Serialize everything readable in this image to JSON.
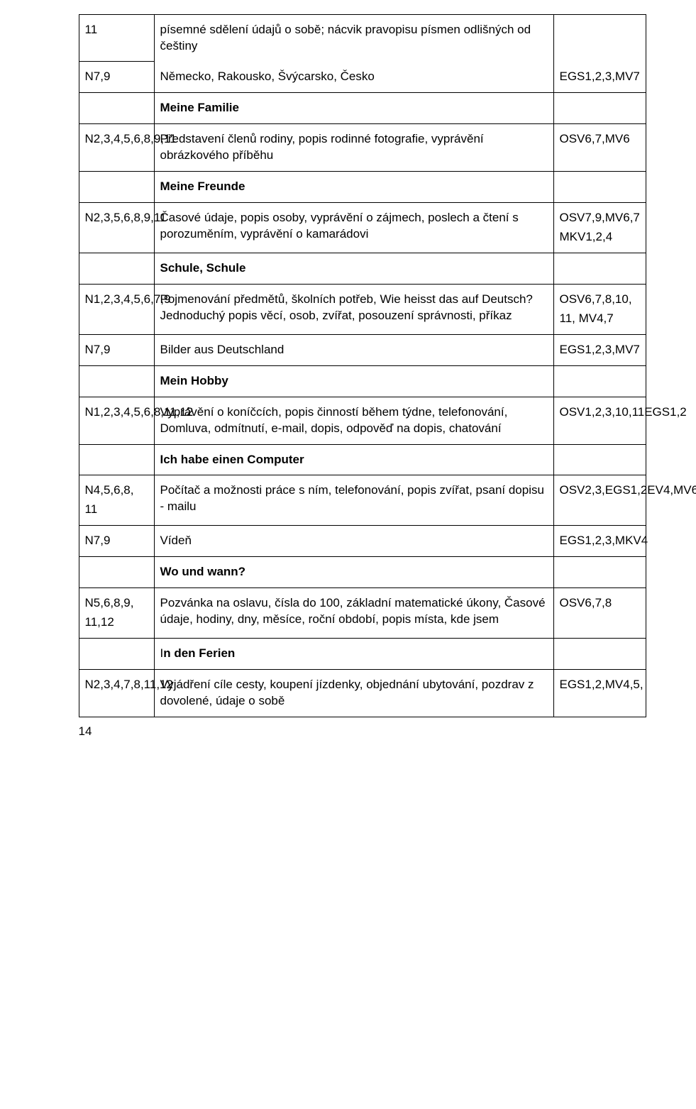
{
  "rows": [
    {
      "c1": "11",
      "c2": "písemné sdělení údajů o sobě; nácvik pravopisu písmen odlišných od češtiny",
      "c3": ""
    },
    {
      "c1": "N7,9",
      "c2": "Německo, Rakousko, Švýcarsko, Česko",
      "c3": "EGS1,2,3,MV7"
    },
    {
      "c1": "",
      "c2_bold": "Meine Familie",
      "c3": ""
    },
    {
      "c1": "N2,3,4,5,6,8,9,11",
      "c2": "Představení členů rodiny, popis rodinné fotografie, vyprávění obrázkového příběhu",
      "c3": "OSV6,7,MV6"
    },
    {
      "c1": "",
      "c2_bold": "Meine Freunde",
      "c3": ""
    },
    {
      "c1": "N2,3,5,6,8,9,11",
      "c2": "Časové údaje, popis osoby, vyprávění o zájmech, poslech a čtení s porozuměním, vyprávění o kamarádovi",
      "c3_multi": [
        "OSV7,9,MV6,7",
        "MKV1,2,4"
      ]
    },
    {
      "c1": "",
      "c2_bold": "Schule, Schule",
      "c3": ""
    },
    {
      "c1": "N1,2,3,4,5,6,7,9",
      "c2": "Pojmenování předmětů, školních potřeb, Wie heisst das auf Deutsch? Jednoduchý popis věcí, osob, zvířat, posouzení správnosti, příkaz",
      "c3_multi": [
        "OSV6,7,8,10,",
        "11, MV4,7"
      ]
    },
    {
      "c1": "N7,9",
      "c2": "Bilder aus Deutschland",
      "c3": "EGS1,2,3,MV7"
    },
    {
      "c1": "",
      "c2_bold": "Mein Hobby",
      "c3": ""
    },
    {
      "c1": "N1,2,3,4,5,6,8,11,12",
      "c2": "Vyprávění o koníčcích, popis činností během týdne, telefonování, Domluva, odmítnutí, e-mail, dopis, odpověď na dopis, chatování",
      "c3": "OSV1,2,3,10,11EGS1,2"
    },
    {
      "c1": "",
      "c2_bold": "Ich habe einen Computer",
      "c3": ""
    },
    {
      "c1_multi": [
        "N4,5,6,8,",
        "11"
      ],
      "c2": "Počítač a možnosti práce s ním, telefonování, popis zvířat, psaní dopisu - mailu",
      "c3": "OSV2,3,EGS1,2EV4,MV6"
    },
    {
      "c1": "N7,9",
      "c2": "Vídeň",
      "c3": "EGS1,2,3,MKV4"
    },
    {
      "c1": "",
      "c2_bold": "Wo und wann?",
      "c3": ""
    },
    {
      "c1_multi": [
        "N5,6,8,9,",
        "11,12"
      ],
      "c2": "Pozvánka na oslavu, čísla do 100, základní matematické úkony, Časové údaje, hodiny, dny, měsíce, roční období, popis místa, kde jsem",
      "c3": "OSV6,7,8"
    },
    {
      "c1": "",
      "c2_bold_prefix": "I",
      "c2_bold": "n den Ferien",
      "c3": ""
    },
    {
      "c1": "N2,3,4,7,8,11,12",
      "c2": "Vyjádření cíle cesty, koupení jízdenky, objednání ubytování, pozdrav z dovolené, údaje o sobě",
      "c3": "EGS1,2,MV4,5,"
    }
  ],
  "page_number": "14"
}
